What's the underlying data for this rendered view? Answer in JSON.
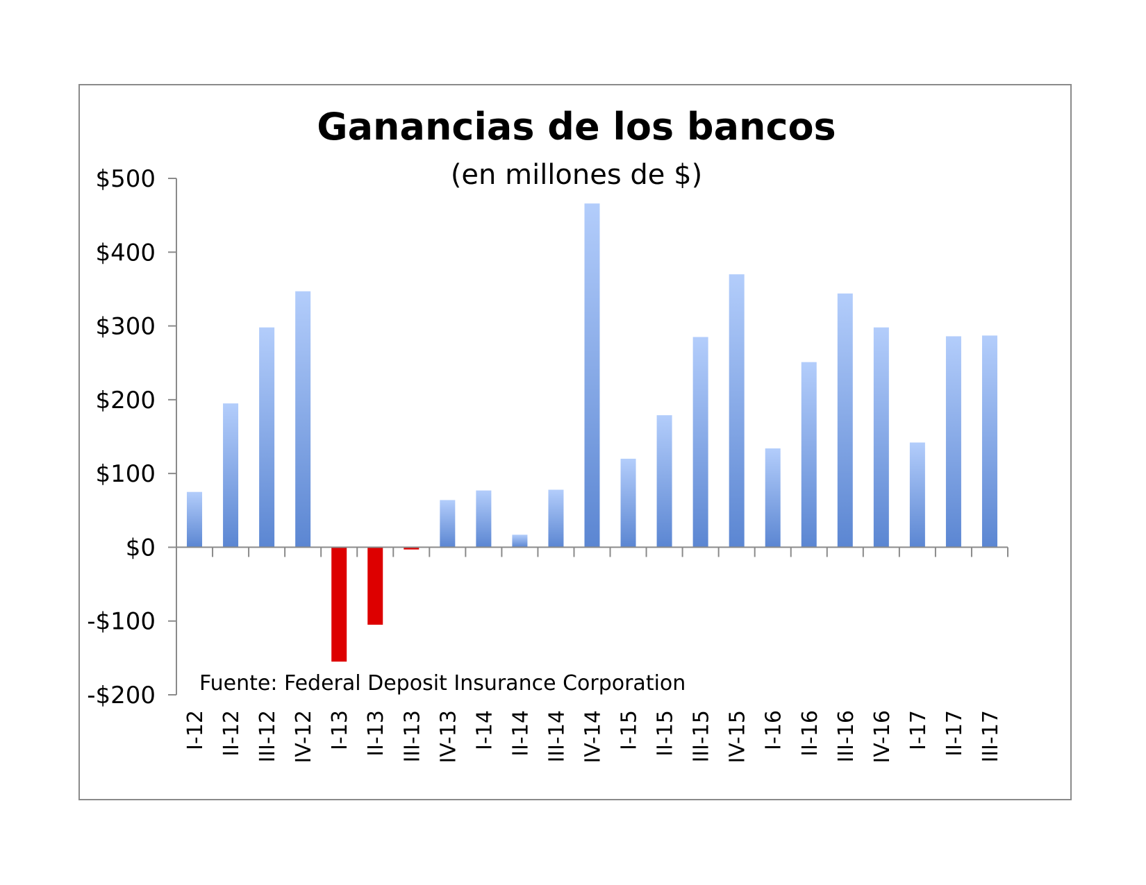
{
  "chart_data": {
    "type": "bar",
    "title": "Ganancias de los bancos",
    "subtitle": "(en millones de $)",
    "source": "Fuente: Federal Deposit Insurance Corporation",
    "categories": [
      "I-12",
      "II-12",
      "III-12",
      "IV-12",
      "I-13",
      "II-13",
      "III-13",
      "IV-13",
      "I-14",
      "II-14",
      "III-14",
      "IV-14",
      "I-15",
      "II-15",
      "III-15",
      "IV-15",
      "I-16",
      "II-16",
      "III-16",
      "IV-16",
      "I-17",
      "II-17",
      "III-17"
    ],
    "values": [
      75,
      195,
      298,
      347,
      -155,
      -105,
      -3,
      64,
      77,
      17,
      78,
      466,
      120,
      179,
      285,
      370,
      134,
      251,
      344,
      298,
      142,
      286,
      287
    ],
    "ylim": [
      -200,
      500
    ],
    "yticks": [
      500,
      400,
      300,
      200,
      100,
      0,
      -100,
      -200
    ],
    "ytick_labels": [
      "$500",
      "$400",
      "$300",
      "$200",
      "$100",
      "$0",
      "-$100",
      "-$200"
    ],
    "xlabel": "",
    "ylabel": "",
    "grid": false,
    "colors": {
      "positive_top": "#b3cdfb",
      "positive_bottom": "#5b86d2",
      "negative": "#dd0000",
      "axis": "#8a8a8a"
    }
  }
}
